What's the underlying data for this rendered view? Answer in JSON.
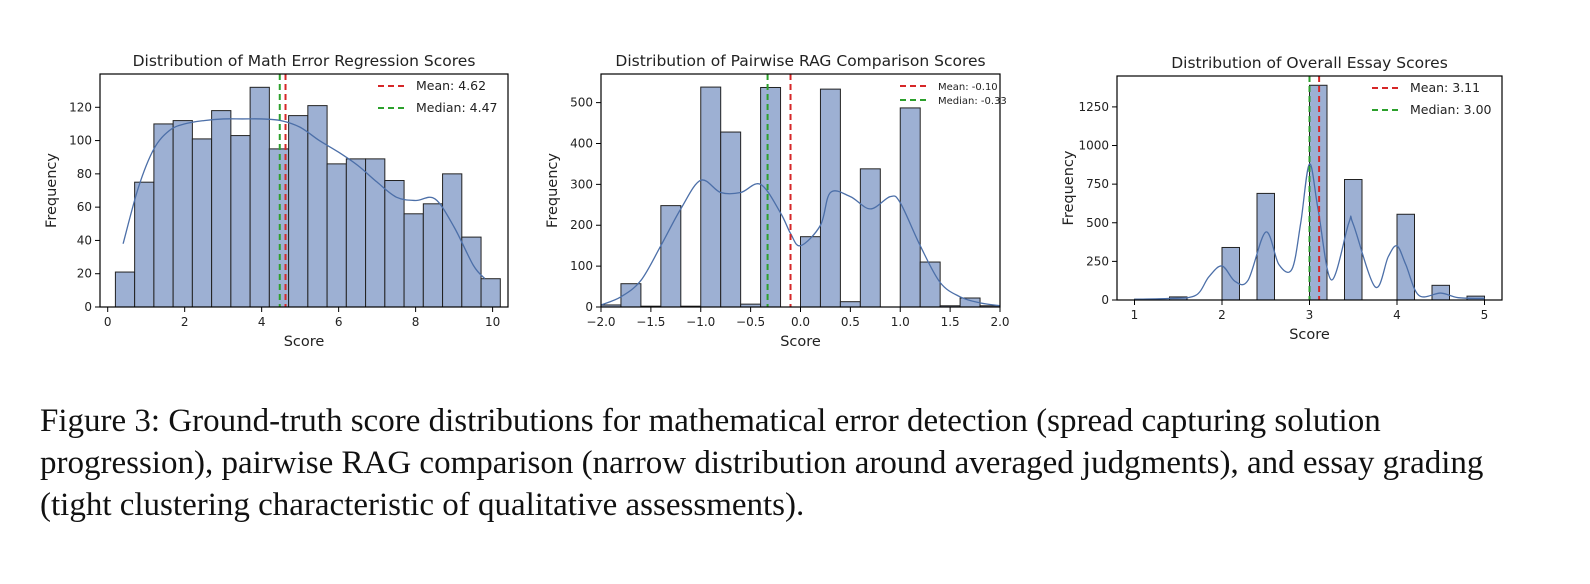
{
  "figure": {
    "caption": "Figure 3: Ground-truth score distributions for mathematical error detection (spread capturing solution progression), pairwise RAG comparison (narrow distribution around averaged judgments), and essay grading (tight clustering characteristic of qualitative assessments)."
  },
  "colors": {
    "bar": "#9db0d3",
    "bar_edge": "#222222",
    "kde": "#4c6fa8",
    "mean": "#d62728",
    "median": "#2ca02c"
  },
  "chart_data": [
    {
      "type": "bar",
      "title": "Distribution of Math Error Regression Scores",
      "xlabel": "Score",
      "ylabel": "Frequency",
      "xlim": [
        -0.2,
        10.4
      ],
      "ylim": [
        0,
        140
      ],
      "xticks": [
        0,
        2,
        4,
        6,
        8,
        10
      ],
      "yticks": [
        0,
        20,
        40,
        60,
        80,
        100,
        120
      ],
      "bins": {
        "edges": [
          0.2,
          0.7,
          1.2,
          1.7,
          2.2,
          2.7,
          3.2,
          3.7,
          4.2,
          4.7,
          5.2,
          5.7,
          6.2,
          6.7,
          7.2,
          7.7,
          8.2,
          8.7,
          9.2,
          9.7
        ],
        "counts": [
          21,
          75,
          110,
          112,
          101,
          118,
          103,
          132,
          95,
          115,
          121,
          86,
          89,
          89,
          76,
          56,
          62,
          80,
          42,
          17
        ]
      },
      "kde": {
        "x": [
          0.4,
          0.8,
          1.2,
          1.6,
          2.0,
          2.5,
          3.0,
          3.5,
          4.0,
          4.5,
          5.0,
          5.5,
          6.0,
          6.5,
          7.0,
          7.5,
          8.0,
          8.5,
          9.0,
          9.5,
          9.8
        ],
        "y": [
          38,
          72,
          95,
          106,
          110,
          112,
          113,
          113,
          113,
          112,
          108,
          100,
          93,
          85,
          75,
          66,
          64,
          65,
          48,
          25,
          17
        ]
      },
      "mean": 4.62,
      "median": 4.47,
      "legend": {
        "position": "top-right",
        "mean_label": "Mean: 4.62",
        "median_label": "Median: 4.47"
      }
    },
    {
      "type": "bar",
      "title": "Distribution of Pairwise RAG Comparison Scores",
      "xlabel": "Score",
      "ylabel": "Frequency",
      "xlim": [
        -2.0,
        2.0
      ],
      "ylim": [
        0,
        570
      ],
      "xticks": [
        -2.0,
        -1.5,
        -1.0,
        -0.5,
        0.0,
        0.5,
        1.0,
        1.5,
        2.0
      ],
      "xtick_labels": [
        "−2.0",
        "−1.5",
        "−1.0",
        "−0.5",
        "0.0",
        "0.5",
        "1.0",
        "1.5",
        "2.0"
      ],
      "yticks": [
        0,
        100,
        200,
        300,
        400,
        500
      ],
      "bins": {
        "edges": [
          -2.0,
          -1.8,
          -1.6,
          -1.4,
          -1.2,
          -1.0,
          -0.8,
          -0.6,
          -0.4,
          -0.2,
          0.0,
          0.2,
          0.4,
          0.6,
          0.8,
          1.0,
          1.2,
          1.4,
          1.6,
          1.8
        ],
        "counts": [
          5,
          57,
          2,
          248,
          2,
          538,
          428,
          7,
          537,
          0,
          172,
          533,
          13,
          338,
          0,
          487,
          110,
          3,
          22,
          3
        ]
      },
      "kde": {
        "x": [
          -2.0,
          -1.8,
          -1.6,
          -1.4,
          -1.2,
          -1.0,
          -0.8,
          -0.6,
          -0.4,
          -0.2,
          -0.1,
          0.0,
          0.2,
          0.3,
          0.5,
          0.7,
          0.9,
          1.0,
          1.2,
          1.4,
          1.6,
          1.8,
          2.0
        ],
        "y": [
          5,
          25,
          65,
          150,
          240,
          310,
          280,
          280,
          300,
          230,
          180,
          150,
          200,
          280,
          270,
          240,
          270,
          255,
          150,
          60,
          25,
          10,
          3
        ]
      },
      "mean": -0.1,
      "median": -0.33,
      "legend": {
        "position": "top-right",
        "mean_label": "Mean: -0.10",
        "median_label": "Median: -0.33"
      }
    },
    {
      "type": "bar",
      "title": "Distribution of Overall Essay Scores",
      "xlabel": "Score",
      "ylabel": "Frequency",
      "xlim": [
        0.8,
        5.2
      ],
      "ylim": [
        0,
        1450
      ],
      "xticks": [
        1,
        2,
        3,
        4,
        5
      ],
      "yticks": [
        0,
        250,
        500,
        750,
        1000,
        1250
      ],
      "bins": {
        "edges": [
          1.0,
          1.2,
          1.4,
          1.6,
          1.8,
          2.0,
          2.2,
          2.4,
          2.6,
          2.8,
          3.0,
          3.2,
          3.4,
          3.6,
          3.8,
          4.0,
          4.2,
          4.4,
          4.6,
          4.8
        ],
        "counts": [
          5,
          0,
          20,
          0,
          0,
          340,
          0,
          690,
          0,
          0,
          1390,
          0,
          780,
          0,
          0,
          555,
          0,
          95,
          0,
          25
        ]
      },
      "kde": {
        "x": [
          1.0,
          1.4,
          1.7,
          1.85,
          2.0,
          2.15,
          2.3,
          2.5,
          2.65,
          2.8,
          2.9,
          3.0,
          3.1,
          3.25,
          3.45,
          3.5,
          3.75,
          3.9,
          4.0,
          4.1,
          4.25,
          4.5,
          4.7,
          5.0
        ],
        "y": [
          5,
          10,
          30,
          150,
          220,
          120,
          130,
          440,
          230,
          200,
          500,
          880,
          580,
          130,
          500,
          490,
          85,
          280,
          350,
          230,
          30,
          45,
          15,
          10
        ]
      },
      "mean": 3.11,
      "median": 3.0,
      "legend": {
        "position": "top-right",
        "mean_label": "Mean: 3.11",
        "median_label": "Median: 3.00"
      }
    }
  ]
}
